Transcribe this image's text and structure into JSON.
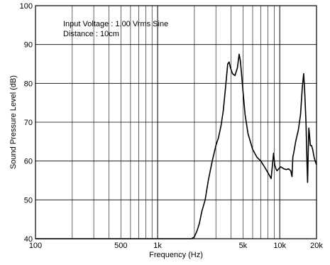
{
  "chart_data": {
    "type": "line",
    "title": "",
    "xlabel": "Frequency (Hz)",
    "ylabel": "Sound Pressure Level (dB)",
    "x_scale": "log",
    "xlim": [
      100,
      20000
    ],
    "ylim": [
      40,
      100
    ],
    "grid": true,
    "legend": "none",
    "line_color": "#000000",
    "annotations": [
      "Input Voltage : 1.00 Vrms Sine",
      "Distance : 10cm"
    ],
    "x_ticks": [
      {
        "value": 100,
        "label": "100"
      },
      {
        "value": 500,
        "label": "500"
      },
      {
        "value": 1000,
        "label": "1k"
      },
      {
        "value": 5000,
        "label": "5k"
      },
      {
        "value": 10000,
        "label": "10k"
      },
      {
        "value": 20000,
        "label": "20k"
      }
    ],
    "x_grid": [
      100,
      200,
      300,
      400,
      500,
      600,
      700,
      800,
      900,
      1000,
      2000,
      3000,
      4000,
      5000,
      6000,
      7000,
      8000,
      9000,
      10000,
      20000
    ],
    "x_grid_major": [
      100,
      1000,
      10000
    ],
    "y_ticks": [
      40,
      50,
      60,
      70,
      80,
      90,
      100
    ],
    "series": [
      {
        "x": [
          100,
          1000,
          1900,
          2000,
          2100,
          2200,
          2300,
          2450,
          2600,
          2800,
          3000,
          3150,
          3300,
          3450,
          3600,
          3750,
          3850,
          3950,
          4100,
          4300,
          4500,
          4650,
          4750,
          4850,
          5000,
          5200,
          5500,
          6000,
          6500,
          7000,
          7500,
          8000,
          8500,
          8900,
          9100,
          9300,
          9500,
          9800,
          10200,
          10800,
          11300,
          11800,
          12300,
          12600,
          12800,
          13000,
          13500,
          14200,
          14800,
          15300,
          15700,
          16000,
          16400,
          16700,
          16900,
          17100,
          17300,
          17500,
          17800,
          18200,
          18600,
          19100,
          19500,
          20000
        ],
        "y": [
          40,
          40,
          40,
          40.5,
          42,
          44,
          47,
          50,
          55,
          60,
          64,
          66,
          69,
          73,
          79,
          85,
          85.5,
          84,
          82.5,
          82,
          84,
          87.5,
          86,
          83,
          78,
          72,
          67,
          63,
          61,
          60,
          58.5,
          57,
          55.5,
          62,
          59,
          58,
          57.5,
          58,
          58.5,
          58,
          57.8,
          58,
          57.5,
          56,
          61,
          62,
          65,
          68,
          72,
          79,
          82.5,
          78,
          70,
          60,
          54.5,
          62,
          68.5,
          67,
          64,
          64,
          63,
          61,
          60,
          59
        ]
      }
    ]
  }
}
